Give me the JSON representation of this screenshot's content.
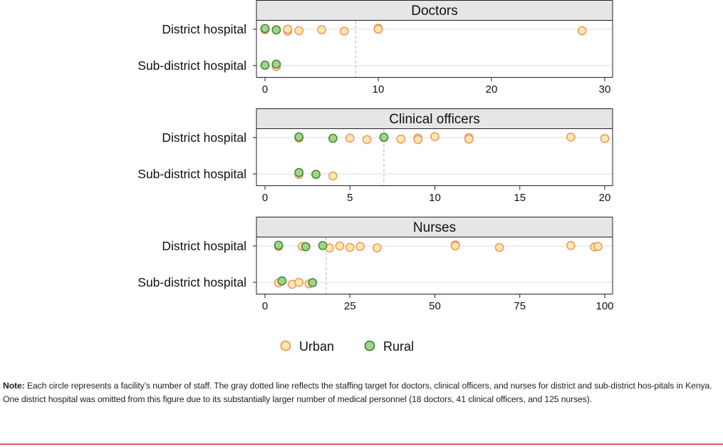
{
  "chart_data": {
    "type": "scatter",
    "categories": [
      "District hospital",
      "Sub-district hospital"
    ],
    "legend": {
      "placement": "bottom-center",
      "items": [
        {
          "name": "Urban",
          "fill": "#fde9a6",
          "stroke": "#f0956a"
        },
        {
          "name": "Rural",
          "fill": "#a3d48c",
          "stroke": "#3f8a32"
        }
      ]
    },
    "panels": [
      {
        "title": "Doctors",
        "xlim": [
          0,
          30
        ],
        "xticks": [
          0,
          10,
          20,
          30
        ],
        "target": 8,
        "series": [
          {
            "name": "Urban",
            "points": [
              {
                "category": "District hospital",
                "x": 0
              },
              {
                "category": "District hospital",
                "x": 1
              },
              {
                "category": "District hospital",
                "x": 2
              },
              {
                "category": "District hospital",
                "x": 2
              },
              {
                "category": "District hospital",
                "x": 3
              },
              {
                "category": "District hospital",
                "x": 5
              },
              {
                "category": "District hospital",
                "x": 7
              },
              {
                "category": "District hospital",
                "x": 10
              },
              {
                "category": "District hospital",
                "x": 10
              },
              {
                "category": "District hospital",
                "x": 28
              },
              {
                "category": "Sub-district hospital",
                "x": 0
              },
              {
                "category": "Sub-district hospital",
                "x": 1
              }
            ]
          },
          {
            "name": "Rural",
            "points": [
              {
                "category": "District hospital",
                "x": 0
              },
              {
                "category": "District hospital",
                "x": 1
              },
              {
                "category": "Sub-district hospital",
                "x": 0
              },
              {
                "category": "Sub-district hospital",
                "x": 1
              }
            ]
          }
        ]
      },
      {
        "title": "Clinical officers",
        "xlim": [
          0,
          20
        ],
        "xticks": [
          0,
          5,
          10,
          15,
          20
        ],
        "target": 7,
        "series": [
          {
            "name": "Urban",
            "points": [
              {
                "category": "District hospital",
                "x": 2
              },
              {
                "category": "District hospital",
                "x": 5
              },
              {
                "category": "District hospital",
                "x": 6
              },
              {
                "category": "District hospital",
                "x": 7
              },
              {
                "category": "District hospital",
                "x": 8
              },
              {
                "category": "District hospital",
                "x": 9
              },
              {
                "category": "District hospital",
                "x": 9
              },
              {
                "category": "District hospital",
                "x": 10
              },
              {
                "category": "District hospital",
                "x": 12
              },
              {
                "category": "District hospital",
                "x": 12
              },
              {
                "category": "District hospital",
                "x": 18
              },
              {
                "category": "District hospital",
                "x": 20
              },
              {
                "category": "Sub-district hospital",
                "x": 2
              },
              {
                "category": "Sub-district hospital",
                "x": 3
              },
              {
                "category": "Sub-district hospital",
                "x": 4
              }
            ]
          },
          {
            "name": "Rural",
            "points": [
              {
                "category": "District hospital",
                "x": 2
              },
              {
                "category": "District hospital",
                "x": 4
              },
              {
                "category": "District hospital",
                "x": 7
              },
              {
                "category": "Sub-district hospital",
                "x": 2
              },
              {
                "category": "Sub-district hospital",
                "x": 3
              }
            ]
          }
        ]
      },
      {
        "title": "Nurses",
        "xlim": [
          0,
          100
        ],
        "xticks": [
          0,
          25,
          50,
          75,
          100
        ],
        "target": 18,
        "series": [
          {
            "name": "Urban",
            "points": [
              {
                "category": "District hospital",
                "x": 4
              },
              {
                "category": "District hospital",
                "x": 11
              },
              {
                "category": "District hospital",
                "x": 19
              },
              {
                "category": "District hospital",
                "x": 22
              },
              {
                "category": "District hospital",
                "x": 25
              },
              {
                "category": "District hospital",
                "x": 28
              },
              {
                "category": "District hospital",
                "x": 33
              },
              {
                "category": "District hospital",
                "x": 56
              },
              {
                "category": "District hospital",
                "x": 56
              },
              {
                "category": "District hospital",
                "x": 69
              },
              {
                "category": "District hospital",
                "x": 90
              },
              {
                "category": "District hospital",
                "x": 97
              },
              {
                "category": "District hospital",
                "x": 98
              },
              {
                "category": "Sub-district hospital",
                "x": 4
              },
              {
                "category": "Sub-district hospital",
                "x": 8
              },
              {
                "category": "Sub-district hospital",
                "x": 10
              },
              {
                "category": "Sub-district hospital",
                "x": 13
              }
            ]
          },
          {
            "name": "Rural",
            "points": [
              {
                "category": "District hospital",
                "x": 4
              },
              {
                "category": "District hospital",
                "x": 12
              },
              {
                "category": "District hospital",
                "x": 17
              },
              {
                "category": "Sub-district hospital",
                "x": 5
              },
              {
                "category": "Sub-district hospital",
                "x": 14
              }
            ]
          }
        ]
      }
    ]
  },
  "note": {
    "label": "Note:",
    "text": "Each circle represents a facility’s number of staff. The gray dotted line reflects the staffing target for doctors, clinical officers, and nurses for district and sub-district hos-pitals in Kenya. One district hospital was omitted from this figure due to its substantially larger number of medical personnel (18 doctors, 41 clinical officers, and 125 nurses)."
  }
}
